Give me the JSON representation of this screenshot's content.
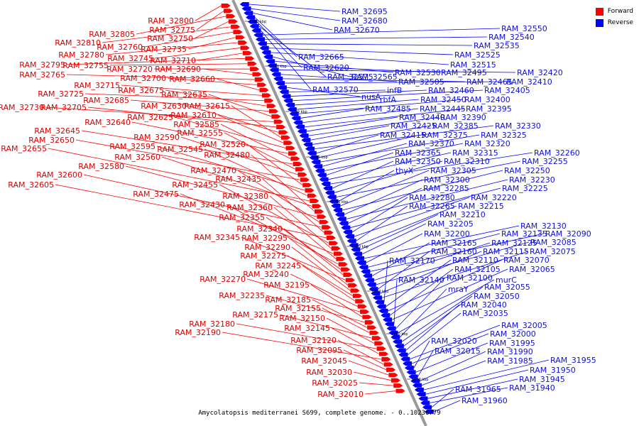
{
  "legend": {
    "forward": {
      "label": "Forward",
      "color": "#ff0000"
    },
    "reverse": {
      "label": "Reverse",
      "color": "#0000ff"
    }
  },
  "caption": "Amycolatopsis mediterranei S699, complete genome. - 0..10236779",
  "backbone_color": "#999999",
  "ticks": [
    "7060 kbp",
    "7040 kbp",
    "7020 kbp",
    "7000 kbp",
    "6980 kbp",
    "6960 kbp",
    "6940 kbp",
    "6920 kbp",
    "6900 kbp"
  ],
  "forward_labels": [
    "RAM_32800",
    "RAM_32775",
    "RAM_32805",
    "RAM_32750",
    "RAM_32810",
    "RAM_32760",
    "RAM_32735",
    "RAM_32780",
    "RAM_32745",
    "RAM_32710",
    "RAM_32795",
    "RAM_32755",
    "RAM_32720",
    "RAM_32690",
    "RAM_32765",
    "RAM_32700",
    "RAM_32660",
    "RAM_32715",
    "RAM_32725",
    "RAM_32675",
    "RAM_32685",
    "RAM_32635",
    "RAM_32730",
    "RAM_32705",
    "RAM_32630",
    "RAM_32615",
    "RAM_32610",
    "RAM_32625",
    "RAM_32640",
    "RAM_32585",
    "RAM_32645",
    "RAM_32555",
    "RAM_32590",
    "RAM_32650",
    "RAM_32520",
    "RAM_32595",
    "RAM_32545",
    "RAM_32655",
    "RAM_32560",
    "RAM_32480",
    "RAM_32580",
    "RAM_32470",
    "RAM_32600",
    "RAM_32435",
    "RAM_32605",
    "RAM_32455",
    "RAM_32380",
    "RAM_32475",
    "RAM_32360",
    "RAM_32430",
    "RAM_32355",
    "RAM_32340",
    "RAM_32345",
    "RAM_32295",
    "RAM_32290",
    "RAM_32275",
    "RAM_32245",
    "RAM_32240",
    "RAM_32270",
    "RAM_32195",
    "RAM_32235",
    "RAM_32185",
    "RAM_32155",
    "RAM_32175",
    "RAM_32150",
    "RAM_32180",
    "RAM_32145",
    "RAM_32190",
    "RAM_32120",
    "RAM_32095",
    "RAM_32045",
    "RAM_32030",
    "RAM_32025",
    "RAM_32010"
  ],
  "reverse_labels": [
    "RAM_32695",
    "RAM_32680",
    "RAM_32670",
    "RAM_32665",
    "RAM_32620",
    "RAM_32575",
    "RAM_32570",
    "RAM_32550",
    "RAM_32540",
    "RAM_32535",
    "RAM_32525",
    "RAM_32515",
    "RAM_32565",
    "RAM_32530",
    "RAM_32495",
    "RAM_32420",
    "RAM_32505",
    "RAM_32465",
    "RAM_32410",
    "nusA",
    "infB",
    "RAM_32460",
    "RAM_32405",
    "rbfA",
    "RAM_32450",
    "RAM_32400",
    "RAM_32485",
    "RAM_32445",
    "RAM_32395",
    "RAM_32440",
    "RAM_32390",
    "RAM_32425",
    "RAM_32385",
    "RAM_32330",
    "RAM_32415",
    "RAM_32375",
    "RAM_32325",
    "RAM_32370",
    "RAM_32320",
    "RAM_32365",
    "RAM_32315",
    "RAM_32260",
    "RAM_32350",
    "RAM_32310",
    "RAM_32255",
    "thyX",
    "RAM_32305",
    "RAM_32250",
    "RAM_32300",
    "RAM_32230",
    "RAM_32285",
    "RAM_32225",
    "RAM_32280",
    "RAM_32220",
    "RAM_32265",
    "RAM_32215",
    "RAM_32210",
    "RAM_32205",
    "RAM_32130",
    "RAM_32200",
    "RAM_32135",
    "RAM_32090",
    "RAM_32165",
    "RAM_32125",
    "RAM_32085",
    "RAM_32160",
    "RAM_32115",
    "RAM_32075",
    "RAM_32170",
    "RAM_32110",
    "RAM_32070",
    "RAM_32105",
    "RAM_32065",
    "RAM_32140",
    "RAM_32100",
    "murC",
    "mraY",
    "RAM_32055",
    "RAM_32050",
    "RAM_32040",
    "RAM_32035",
    "RAM_32005",
    "RAM_32000",
    "RAM_32020",
    "RAM_31995",
    "RAM_32015",
    "RAM_31990",
    "RAM_31985",
    "RAM_31955",
    "RAM_31950",
    "RAM_31945",
    "RAM_31940",
    "RAM_31965",
    "RAM_31960"
  ]
}
